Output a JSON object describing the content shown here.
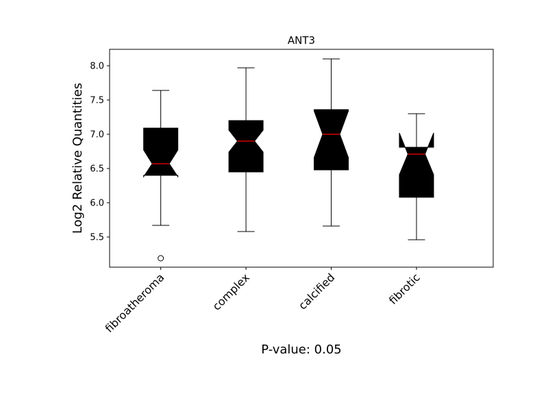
{
  "chart_data": {
    "type": "box",
    "title": "ANT3",
    "ylabel": "Log2 Relative Quantities",
    "xlabel": "P-value: 0.05",
    "categories": [
      "fibroatheroma",
      "complex",
      "calcified",
      "fibrotic"
    ],
    "boxes": [
      {
        "whislo": 5.67,
        "q1": 6.4,
        "med": 6.57,
        "q3": 7.09,
        "whishi": 7.64,
        "notch_low": 6.38,
        "notch_high": 6.77,
        "fliers": [
          5.19
        ]
      },
      {
        "whislo": 5.58,
        "q1": 6.45,
        "med": 6.9,
        "q3": 7.2,
        "whishi": 7.97,
        "notch_low": 6.74,
        "notch_high": 7.06,
        "fliers": []
      },
      {
        "whislo": 5.66,
        "q1": 6.48,
        "med": 7.0,
        "q3": 7.36,
        "whishi": 8.1,
        "notch_low": 6.66,
        "notch_high": 7.34,
        "fliers": []
      },
      {
        "whislo": 5.46,
        "q1": 6.08,
        "med": 6.71,
        "q3": 6.81,
        "whishi": 7.3,
        "notch_low": 6.41,
        "notch_high": 7.02,
        "fliers": []
      }
    ],
    "box_color": "#000000",
    "median_color": "#ff0000",
    "xlim": [
      0.4,
      4.9
    ],
    "ylim": [
      5.06,
      8.24
    ],
    "yticks": [
      5.5,
      {
        "value": 6,
        "label": "6.0"
      },
      6.5,
      {
        "value": 7,
        "label": "7.0"
      },
      7.5,
      {
        "value": 8,
        "label": "8.0"
      }
    ]
  }
}
